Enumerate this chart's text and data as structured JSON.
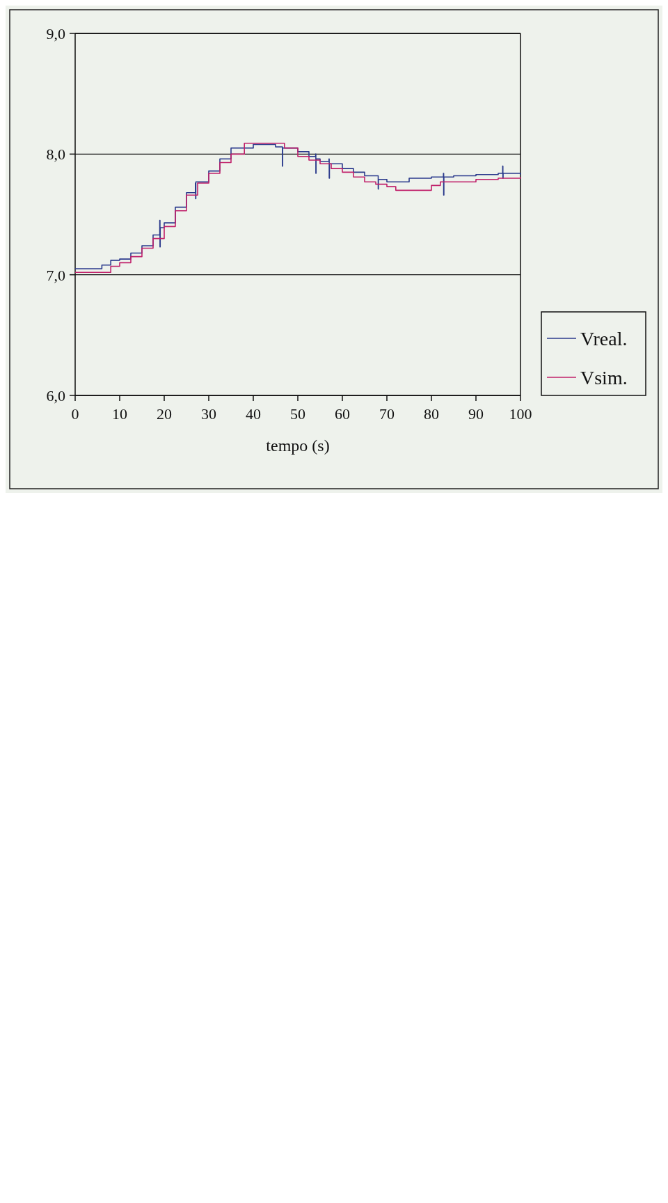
{
  "chart_data": {
    "type": "step",
    "xlabel": "tempo (s)",
    "xlim": [
      0,
      100
    ],
    "xticks": [
      0,
      10,
      20,
      30,
      40,
      50,
      60,
      70,
      80,
      90,
      100
    ],
    "ylim": [
      6,
      9
    ],
    "yticks": [
      {
        "value": 6,
        "label": "6,0"
      },
      {
        "value": 7,
        "label": "7,0"
      },
      {
        "value": 8,
        "label": "8,0"
      },
      {
        "value": 9,
        "label": "9,0"
      }
    ],
    "grid": "y",
    "legend": "bottom right",
    "line_style": "solid",
    "marker": "none",
    "series": [
      {
        "name": "Vreal.",
        "color": "#2b3a8c",
        "x": [
          0,
          6,
          8,
          10,
          12.5,
          15,
          17.5,
          19,
          19.05,
          19.1,
          20,
          22.5,
          25,
          27,
          27.05,
          27.1,
          30,
          32.5,
          35,
          40,
          45,
          46.5,
          46.55,
          46.6,
          50,
          52.5,
          54,
          54.05,
          54.1,
          55,
          57,
          57.05,
          57.1,
          60,
          62.5,
          65,
          68,
          68.05,
          68.1,
          70,
          75,
          80,
          82.7,
          82.75,
          82.8,
          85,
          90,
          95,
          96,
          96.05,
          96.1,
          100
        ],
        "values": [
          7.05,
          7.08,
          7.12,
          7.13,
          7.18,
          7.24,
          7.33,
          7.45,
          7.23,
          7.39,
          7.43,
          7.56,
          7.68,
          7.76,
          7.63,
          7.77,
          7.86,
          7.96,
          8.05,
          8.08,
          8.06,
          8.06,
          7.9,
          8.05,
          8.02,
          7.98,
          8.0,
          7.84,
          7.96,
          7.94,
          7.96,
          7.8,
          7.92,
          7.88,
          7.85,
          7.82,
          7.82,
          7.71,
          7.79,
          7.77,
          7.8,
          7.81,
          7.84,
          7.66,
          7.81,
          7.82,
          7.83,
          7.84,
          7.9,
          7.8,
          7.84,
          7.83
        ]
      },
      {
        "name": "Vsim.",
        "color": "#c0206a",
        "x": [
          0,
          8,
          10,
          12.5,
          15,
          17.5,
          20,
          22.5,
          25,
          27.5,
          30,
          32.5,
          35,
          38,
          47,
          50,
          52.5,
          55,
          57.5,
          60,
          62.5,
          65,
          67.5,
          70,
          72,
          80,
          82,
          90,
          95,
          100
        ],
        "values": [
          7.02,
          7.07,
          7.1,
          7.15,
          7.22,
          7.3,
          7.4,
          7.53,
          7.66,
          7.76,
          7.84,
          7.93,
          8.0,
          8.09,
          8.05,
          7.98,
          7.95,
          7.92,
          7.88,
          7.85,
          7.81,
          7.77,
          7.75,
          7.73,
          7.7,
          7.74,
          7.77,
          7.79,
          7.8,
          7.81
        ]
      }
    ]
  }
}
